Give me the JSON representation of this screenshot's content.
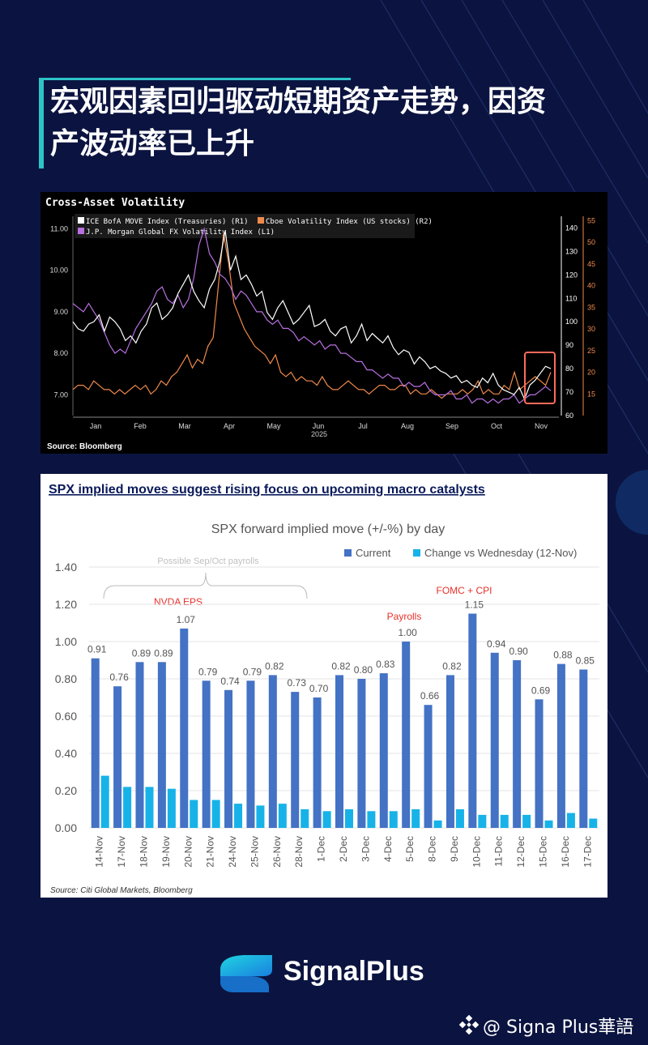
{
  "page": {
    "title_line1": "宏观因素回归驱动短期资产走势，因资",
    "title_line2": "产波动率已上升",
    "brand": "SignalPlus",
    "watermark": "@ Signa Plus華語",
    "colors": {
      "background": "#0b1440",
      "accent": "#2ec4c6"
    }
  },
  "chart_data": [
    {
      "type": "line",
      "title": "Cross-Asset Volatility",
      "source": "Source:  Bloomberg",
      "year_label": "2025",
      "x_labels": [
        "Jan",
        "Feb",
        "Mar",
        "Apr",
        "May",
        "Jun",
        "Jul",
        "Aug",
        "Sep",
        "Oct",
        "Nov"
      ],
      "left_axis": {
        "ticks": [
          "11.00",
          "10.00",
          "9.00",
          "8.00",
          "7.00"
        ],
        "ylim": [
          6.5,
          11.3
        ]
      },
      "right_axis_r1": {
        "ticks": [
          "140",
          "130",
          "120",
          "110",
          "100",
          "90",
          "80",
          "70",
          "60"
        ],
        "ylim": [
          60,
          145
        ]
      },
      "right_axis_r2": {
        "ticks": [
          "55",
          "50",
          "45",
          "40",
          "35",
          "30",
          "25",
          "20",
          "15"
        ],
        "ylim": [
          10,
          56
        ]
      },
      "series": [
        {
          "name": "ICE BofA MOVE Index (Treasuries) (R1)",
          "color": "#ffffff",
          "axis": "r1",
          "values": [
            100,
            97,
            96,
            99,
            100,
            103,
            96,
            102,
            100,
            97,
            92,
            94,
            91,
            96,
            99,
            106,
            108,
            101,
            103,
            106,
            112,
            116,
            120,
            113,
            109,
            106,
            114,
            118,
            126,
            139,
            122,
            128,
            118,
            120,
            116,
            111,
            113,
            104,
            101,
            106,
            109,
            104,
            99,
            101,
            104,
            107,
            98,
            99,
            101,
            96,
            94,
            97,
            98,
            91,
            94,
            99,
            92,
            95,
            93,
            91,
            94,
            89,
            86,
            88,
            87,
            82,
            85,
            83,
            80,
            81,
            79,
            78,
            76,
            77,
            74,
            75,
            73,
            72,
            76,
            74,
            78,
            73,
            71,
            70,
            69,
            72,
            67,
            73,
            75,
            78,
            81,
            80
          ]
        },
        {
          "name": "J.P. Morgan Global FX Volatility Index  (L1)",
          "color": "#b86fe0",
          "axis": "l1",
          "values": [
            9.2,
            9.1,
            9.0,
            9.2,
            9.0,
            8.8,
            8.5,
            8.2,
            8.0,
            8.1,
            8.0,
            8.3,
            8.6,
            8.8,
            9.0,
            9.2,
            9.5,
            9.6,
            9.3,
            9.2,
            9.4,
            9.1,
            9.3,
            9.8,
            10.6,
            11.0,
            10.4,
            10.2,
            9.9,
            9.8,
            9.6,
            9.3,
            9.5,
            9.4,
            9.2,
            9.0,
            9.0,
            8.8,
            8.7,
            8.8,
            8.6,
            8.6,
            8.5,
            8.3,
            8.4,
            8.3,
            8.2,
            8.3,
            8.1,
            8.2,
            8.2,
            8.0,
            8.0,
            7.9,
            7.8,
            7.8,
            7.6,
            7.6,
            7.5,
            7.4,
            7.5,
            7.4,
            7.4,
            7.2,
            7.3,
            7.2,
            7.2,
            7.3,
            7.1,
            7.0,
            7.0,
            7.0,
            7.1,
            6.9,
            6.9,
            7.0,
            6.8,
            6.9,
            6.9,
            6.8,
            6.9,
            6.8,
            6.9,
            6.9,
            7.0,
            6.8,
            6.9,
            7.0,
            7.0,
            7.1,
            7.2,
            7.1
          ]
        },
        {
          "name": "Cboe Volatility Index (US stocks) (R2)",
          "color": "#f08a4b",
          "axis": "r2",
          "values": [
            16,
            17,
            17,
            16,
            18,
            17,
            16,
            16,
            15,
            16,
            15,
            16,
            17,
            16,
            17,
            15,
            16,
            18,
            17,
            19,
            20,
            22,
            24,
            21,
            23,
            22,
            26,
            28,
            40,
            52,
            45,
            36,
            33,
            30,
            28,
            26,
            25,
            24,
            22,
            24,
            20,
            19,
            20,
            18,
            19,
            18,
            18,
            17,
            19,
            17,
            16,
            16,
            17,
            18,
            17,
            16,
            16,
            15,
            16,
            17,
            17,
            16,
            16,
            17,
            17,
            15,
            16,
            15,
            15,
            16,
            15,
            14,
            15,
            15,
            15,
            16,
            15,
            16,
            18,
            15,
            16,
            15,
            15,
            17,
            16,
            20,
            16,
            17,
            18,
            19,
            18,
            17,
            20
          ]
        }
      ],
      "highlight": "Oct–Nov region"
    },
    {
      "type": "bar",
      "header": "SPX implied moves suggest rising focus on upcoming macro catalysts",
      "title": "SPX forward implied move (+/-%) by day",
      "source": "Source: Citi Global Markets, Bloomberg",
      "categories": [
        "14-Nov",
        "17-Nov",
        "18-Nov",
        "19-Nov",
        "20-Nov",
        "21-Nov",
        "24-Nov",
        "25-Nov",
        "26-Nov",
        "28-Nov",
        "1-Dec",
        "2-Dec",
        "3-Dec",
        "4-Dec",
        "5-Dec",
        "8-Dec",
        "9-Dec",
        "10-Dec",
        "11-Dec",
        "12-Dec",
        "15-Dec",
        "16-Dec",
        "17-Dec"
      ],
      "ylim": [
        0,
        1.4
      ],
      "yticks": [
        "1.40",
        "1.20",
        "1.00",
        "0.80",
        "0.60",
        "0.40",
        "0.20",
        "0.00"
      ],
      "series": [
        {
          "name": "Current",
          "color": "#4472c4",
          "values": [
            0.91,
            0.76,
            0.89,
            0.89,
            1.07,
            0.79,
            0.74,
            0.79,
            0.82,
            0.73,
            0.7,
            0.82,
            0.8,
            0.83,
            1.0,
            0.66,
            0.82,
            1.15,
            0.94,
            0.9,
            0.69,
            0.88,
            0.85
          ],
          "labels": [
            "0.91",
            "0.76",
            "0.89",
            "0.89",
            "1.07",
            "0.79",
            "0.74",
            "0.79",
            "0.82",
            "0.73",
            "0.70",
            "0.82",
            "0.80",
            "0.83",
            "1.00",
            "0.66",
            "0.82",
            "1.15",
            "0.94",
            "0.90",
            "0.69",
            "0.88",
            "0.85"
          ]
        },
        {
          "name": "Change vs Wednesday (12-Nov)",
          "color": "#17b3e8",
          "values": [
            0.28,
            0.22,
            0.22,
            0.21,
            0.15,
            0.15,
            0.13,
            0.12,
            0.13,
            0.1,
            0.09,
            0.1,
            0.09,
            0.09,
            0.1,
            0.04,
            0.1,
            0.07,
            0.07,
            0.07,
            0.04,
            0.08,
            0.05
          ]
        }
      ],
      "annotations": {
        "payrolls_range": "Possible Sep/Oct payrolls",
        "nvda": "NVDA EPS",
        "payrolls": "Payrolls",
        "fomc": "FOMC + CPI"
      }
    }
  ]
}
